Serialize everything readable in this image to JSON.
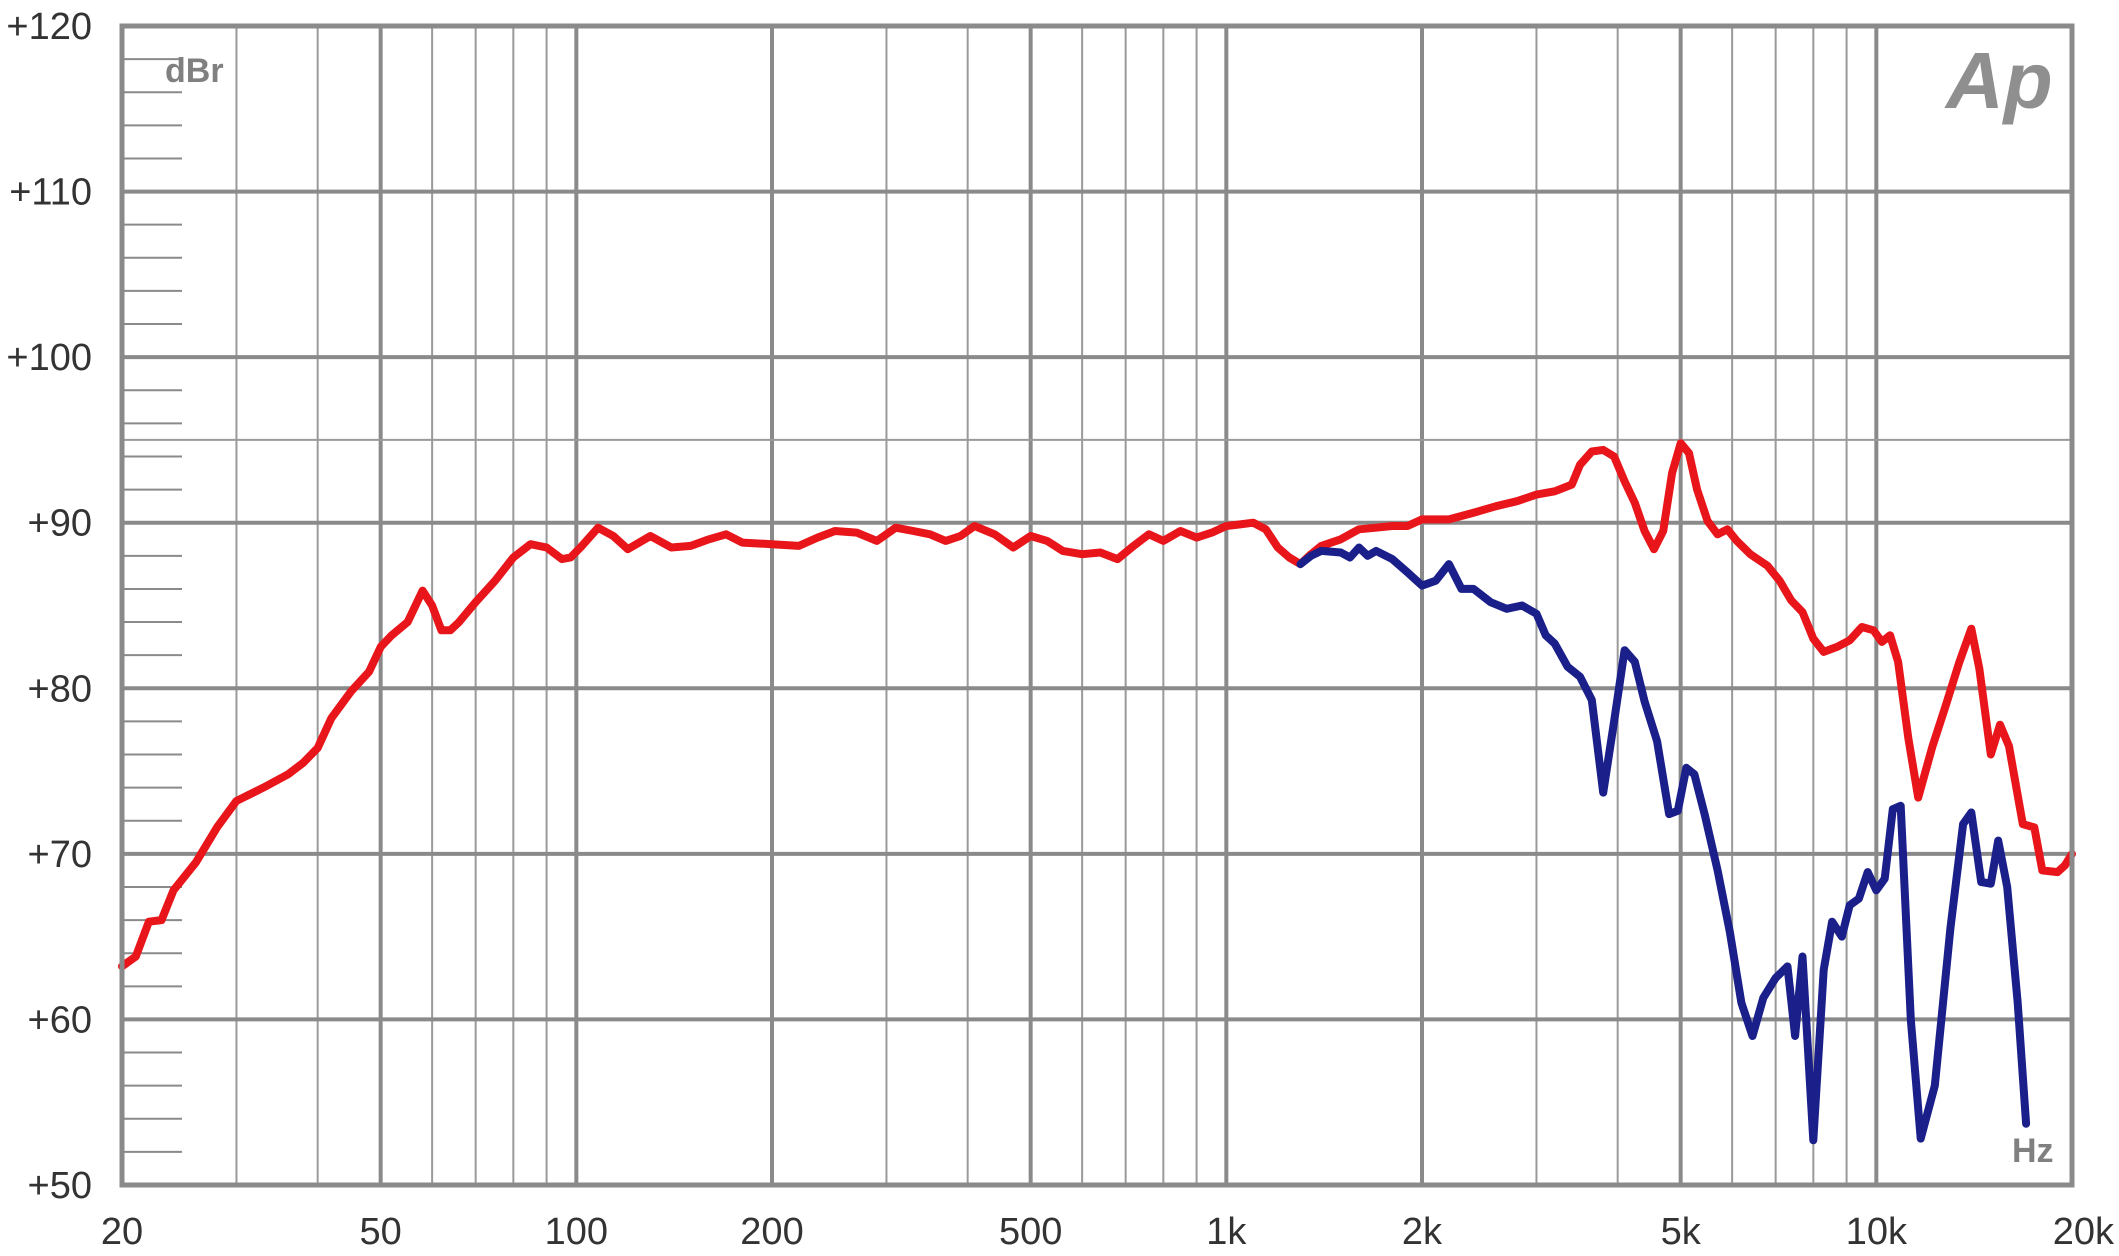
{
  "chart_data": {
    "type": "line",
    "title": "",
    "xlabel": "Hz",
    "ylabel": "dBr",
    "logo_text": "Ap",
    "x_scale": "log",
    "xlim": [
      20,
      20000
    ],
    "ylim": [
      50,
      120
    ],
    "grid": true,
    "x_ticks": [
      {
        "value": 20,
        "label": "20"
      },
      {
        "value": 50,
        "label": "50"
      },
      {
        "value": 100,
        "label": "100"
      },
      {
        "value": 200,
        "label": "200"
      },
      {
        "value": 500,
        "label": "500"
      },
      {
        "value": 1000,
        "label": "1k"
      },
      {
        "value": 2000,
        "label": "2k"
      },
      {
        "value": 5000,
        "label": "5k"
      },
      {
        "value": 10000,
        "label": "10k"
      },
      {
        "value": 20000,
        "label": "20k"
      }
    ],
    "y_ticks": [
      {
        "value": 120,
        "label": "+120"
      },
      {
        "value": 110,
        "label": "+110"
      },
      {
        "value": 100,
        "label": "+100"
      },
      {
        "value": 90,
        "label": "+90"
      },
      {
        "value": 80,
        "label": "+80"
      },
      {
        "value": 70,
        "label": "+70"
      },
      {
        "value": 60,
        "label": "+60"
      },
      {
        "value": 50,
        "label": "+50"
      }
    ],
    "series": [
      {
        "color": "#e8161b",
        "points": [
          [
            20,
            63.2
          ],
          [
            21,
            63.8
          ],
          [
            22,
            65.9
          ],
          [
            23,
            66.0
          ],
          [
            24,
            67.8
          ],
          [
            26,
            69.5
          ],
          [
            28,
            71.6
          ],
          [
            30,
            73.2
          ],
          [
            33,
            74.0
          ],
          [
            36,
            74.8
          ],
          [
            38,
            75.5
          ],
          [
            40,
            76.4
          ],
          [
            42,
            78.2
          ],
          [
            45,
            79.8
          ],
          [
            48,
            81.0
          ],
          [
            50,
            82.5
          ],
          [
            52,
            83.2
          ],
          [
            55,
            84.0
          ],
          [
            58,
            85.9
          ],
          [
            60,
            85.0
          ],
          [
            62,
            83.5
          ],
          [
            64,
            83.5
          ],
          [
            66,
            84.0
          ],
          [
            70,
            85.2
          ],
          [
            75,
            86.5
          ],
          [
            80,
            87.9
          ],
          [
            85,
            88.7
          ],
          [
            90,
            88.5
          ],
          [
            95,
            87.8
          ],
          [
            98,
            87.9
          ],
          [
            102,
            88.6
          ],
          [
            108,
            89.7
          ],
          [
            114,
            89.2
          ],
          [
            120,
            88.4
          ],
          [
            130,
            89.2
          ],
          [
            140,
            88.5
          ],
          [
            150,
            88.6
          ],
          [
            160,
            89.0
          ],
          [
            170,
            89.3
          ],
          [
            180,
            88.8
          ],
          [
            200,
            88.7
          ],
          [
            220,
            88.6
          ],
          [
            235,
            89.1
          ],
          [
            250,
            89.5
          ],
          [
            270,
            89.4
          ],
          [
            290,
            88.9
          ],
          [
            310,
            89.7
          ],
          [
            330,
            89.5
          ],
          [
            350,
            89.3
          ],
          [
            370,
            88.9
          ],
          [
            390,
            89.2
          ],
          [
            410,
            89.8
          ],
          [
            440,
            89.3
          ],
          [
            470,
            88.5
          ],
          [
            500,
            89.2
          ],
          [
            530,
            88.9
          ],
          [
            560,
            88.3
          ],
          [
            600,
            88.1
          ],
          [
            640,
            88.2
          ],
          [
            680,
            87.8
          ],
          [
            720,
            88.6
          ],
          [
            760,
            89.3
          ],
          [
            800,
            88.9
          ],
          [
            850,
            89.5
          ],
          [
            900,
            89.1
          ],
          [
            950,
            89.4
          ],
          [
            1000,
            89.8
          ],
          [
            1050,
            89.9
          ],
          [
            1100,
            90.0
          ],
          [
            1150,
            89.6
          ],
          [
            1200,
            88.5
          ],
          [
            1250,
            87.9
          ],
          [
            1300,
            87.5
          ],
          [
            1350,
            88.1
          ],
          [
            1400,
            88.6
          ],
          [
            1500,
            89.0
          ],
          [
            1600,
            89.6
          ],
          [
            1700,
            89.7
          ],
          [
            1800,
            89.8
          ],
          [
            1900,
            89.8
          ],
          [
            2000,
            90.2
          ],
          [
            2200,
            90.2
          ],
          [
            2400,
            90.6
          ],
          [
            2600,
            91.0
          ],
          [
            2800,
            91.3
          ],
          [
            3000,
            91.7
          ],
          [
            3200,
            91.9
          ],
          [
            3400,
            92.3
          ],
          [
            3500,
            93.5
          ],
          [
            3650,
            94.3
          ],
          [
            3800,
            94.4
          ],
          [
            3950,
            94.0
          ],
          [
            4100,
            92.5
          ],
          [
            4250,
            91.2
          ],
          [
            4400,
            89.5
          ],
          [
            4550,
            88.4
          ],
          [
            4700,
            89.5
          ],
          [
            4850,
            93.0
          ],
          [
            5000,
            94.8
          ],
          [
            5150,
            94.2
          ],
          [
            5300,
            92.0
          ],
          [
            5500,
            90.1
          ],
          [
            5700,
            89.3
          ],
          [
            5900,
            89.6
          ],
          [
            6100,
            88.9
          ],
          [
            6400,
            88.1
          ],
          [
            6800,
            87.4
          ],
          [
            7100,
            86.5
          ],
          [
            7400,
            85.3
          ],
          [
            7700,
            84.6
          ],
          [
            8000,
            83.0
          ],
          [
            8300,
            82.2
          ],
          [
            8700,
            82.5
          ],
          [
            9100,
            82.9
          ],
          [
            9500,
            83.7
          ],
          [
            9900,
            83.5
          ],
          [
            10200,
            82.8
          ],
          [
            10500,
            83.2
          ],
          [
            10800,
            81.6
          ],
          [
            11200,
            77.0
          ],
          [
            11600,
            73.4
          ],
          [
            12200,
            76.5
          ],
          [
            12800,
            79.0
          ],
          [
            13400,
            81.5
          ],
          [
            14000,
            83.6
          ],
          [
            14400,
            81.2
          ],
          [
            15000,
            76.0
          ],
          [
            15500,
            77.8
          ],
          [
            16000,
            76.5
          ],
          [
            16800,
            71.8
          ],
          [
            17500,
            71.6
          ],
          [
            18000,
            69.0
          ],
          [
            19000,
            68.9
          ],
          [
            19500,
            69.3
          ],
          [
            20000,
            70.0
          ]
        ]
      },
      {
        "color": "#1a1f8a",
        "points": [
          [
            1300,
            87.5
          ],
          [
            1350,
            88.0
          ],
          [
            1400,
            88.3
          ],
          [
            1500,
            88.2
          ],
          [
            1550,
            87.9
          ],
          [
            1600,
            88.5
          ],
          [
            1650,
            88.0
          ],
          [
            1700,
            88.3
          ],
          [
            1800,
            87.8
          ],
          [
            1900,
            87.0
          ],
          [
            2000,
            86.2
          ],
          [
            2100,
            86.5
          ],
          [
            2200,
            87.5
          ],
          [
            2300,
            86.0
          ],
          [
            2400,
            86.0
          ],
          [
            2550,
            85.2
          ],
          [
            2700,
            84.8
          ],
          [
            2850,
            85.0
          ],
          [
            3000,
            84.5
          ],
          [
            3100,
            83.2
          ],
          [
            3200,
            82.7
          ],
          [
            3350,
            81.3
          ],
          [
            3500,
            80.7
          ],
          [
            3650,
            79.3
          ],
          [
            3800,
            73.7
          ],
          [
            3950,
            78.0
          ],
          [
            4100,
            82.3
          ],
          [
            4250,
            81.6
          ],
          [
            4400,
            79.2
          ],
          [
            4600,
            76.8
          ],
          [
            4800,
            72.4
          ],
          [
            4950,
            72.6
          ],
          [
            5100,
            75.2
          ],
          [
            5250,
            74.8
          ],
          [
            5450,
            72.3
          ],
          [
            5700,
            69.0
          ],
          [
            5950,
            65.3
          ],
          [
            6200,
            61.0
          ],
          [
            6450,
            59.0
          ],
          [
            6700,
            61.3
          ],
          [
            7000,
            62.5
          ],
          [
            7300,
            63.2
          ],
          [
            7500,
            59.0
          ],
          [
            7700,
            63.8
          ],
          [
            8000,
            52.7
          ],
          [
            8300,
            63.0
          ],
          [
            8550,
            65.9
          ],
          [
            8850,
            65.0
          ],
          [
            9100,
            66.9
          ],
          [
            9400,
            67.3
          ],
          [
            9700,
            68.9
          ],
          [
            10000,
            67.8
          ],
          [
            10300,
            68.5
          ],
          [
            10600,
            72.7
          ],
          [
            10900,
            72.9
          ],
          [
            11300,
            60.0
          ],
          [
            11700,
            52.8
          ],
          [
            12300,
            56.0
          ],
          [
            13000,
            65.5
          ],
          [
            13600,
            71.8
          ],
          [
            14000,
            72.5
          ],
          [
            14500,
            68.3
          ],
          [
            15000,
            68.2
          ],
          [
            15400,
            70.8
          ],
          [
            15900,
            68.0
          ],
          [
            16500,
            61.0
          ],
          [
            17000,
            53.7
          ]
        ]
      }
    ]
  }
}
